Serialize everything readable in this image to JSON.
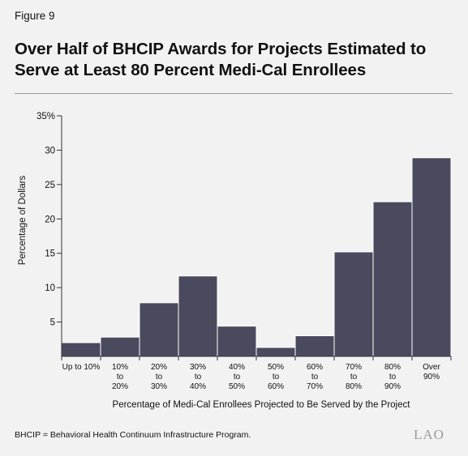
{
  "figure_label": "Figure 9",
  "title": "Over Half of BHCIP Awards for Projects Estimated to Serve at Least 80 Percent Medi-Cal Enrollees",
  "note": "BHCIP = Behavioral Health Continuum Infrastructure Program.",
  "logo": "LAO",
  "colors": {
    "bar": "#4a4a5e",
    "bar_edge": "#ffffff",
    "axis": "#333333",
    "background": "#f2f2f2"
  },
  "chart_data": {
    "type": "bar",
    "categories": [
      [
        "Up to 10%"
      ],
      [
        "10%",
        "to",
        "20%"
      ],
      [
        "20%",
        "to",
        "30%"
      ],
      [
        "30%",
        "to",
        "40%"
      ],
      [
        "40%",
        "to",
        "50%"
      ],
      [
        "50%",
        "to",
        "60%"
      ],
      [
        "60%",
        "to",
        "70%"
      ],
      [
        "70%",
        "to",
        "80%"
      ],
      [
        "80%",
        "to",
        "90%"
      ],
      [
        "Over",
        "90%"
      ]
    ],
    "values": [
      2.0,
      2.8,
      7.8,
      11.7,
      4.4,
      1.3,
      3.0,
      15.2,
      22.5,
      28.9
    ],
    "ylim": [
      0,
      35
    ],
    "yticks": [
      "",
      "5",
      "10",
      "15",
      "20",
      "25",
      "30",
      "35%"
    ],
    "xlabel": "Percentage of Medi-Cal Enrollees Projected to Be Served by the Project",
    "ylabel": "Percentage of Dollars",
    "grid": false
  }
}
